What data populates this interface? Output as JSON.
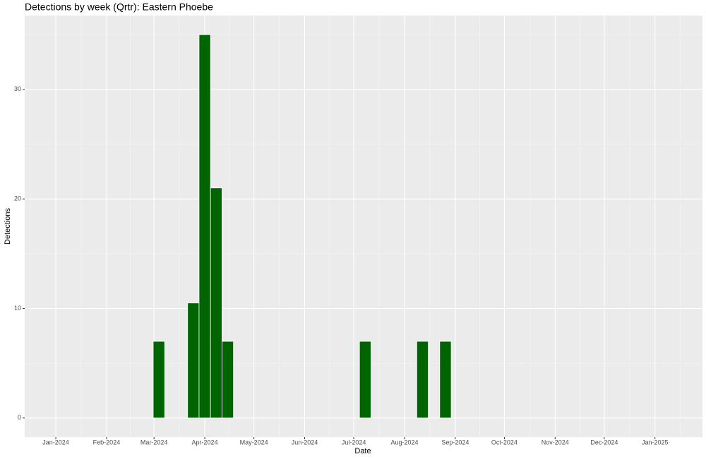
{
  "chart_data": {
    "type": "bar",
    "title": "Detections by week (Qrtr): Eastern Phoebe",
    "x_label": "Date",
    "y_label": "Detections",
    "x": [
      "2024-03-04",
      "2024-03-25",
      "2024-04-01",
      "2024-04-08",
      "2024-04-15",
      "2024-07-08",
      "2024-08-12",
      "2024-08-26"
    ],
    "values": [
      7,
      10.5,
      35,
      21,
      7,
      7,
      7,
      7
    ],
    "color": "#006400",
    "xlim": [
      "2023-12-13",
      "2025-01-30"
    ],
    "xticks": [
      {
        "value": "2024-01-01",
        "label": "Jan-2024"
      },
      {
        "value": "2024-02-01",
        "label": "Feb-2024"
      },
      {
        "value": "2024-03-01",
        "label": "Mar-2024"
      },
      {
        "value": "2024-04-01",
        "label": "Apr-2024"
      },
      {
        "value": "2024-05-01",
        "label": "May-2024"
      },
      {
        "value": "2024-06-01",
        "label": "Jun-2024"
      },
      {
        "value": "2024-07-01",
        "label": "Jul-2024"
      },
      {
        "value": "2024-08-01",
        "label": "Aug-2024"
      },
      {
        "value": "2024-09-01",
        "label": "Sep-2024"
      },
      {
        "value": "2024-10-01",
        "label": "Oct-2024"
      },
      {
        "value": "2024-11-01",
        "label": "Nov-2024"
      },
      {
        "value": "2024-12-01",
        "label": "Dec-2024"
      },
      {
        "value": "2025-01-01",
        "label": "Jan-2025"
      }
    ],
    "ylim": [
      -1.75,
      36.75
    ],
    "yticks": [
      0,
      10,
      20,
      30
    ],
    "grid": true
  }
}
